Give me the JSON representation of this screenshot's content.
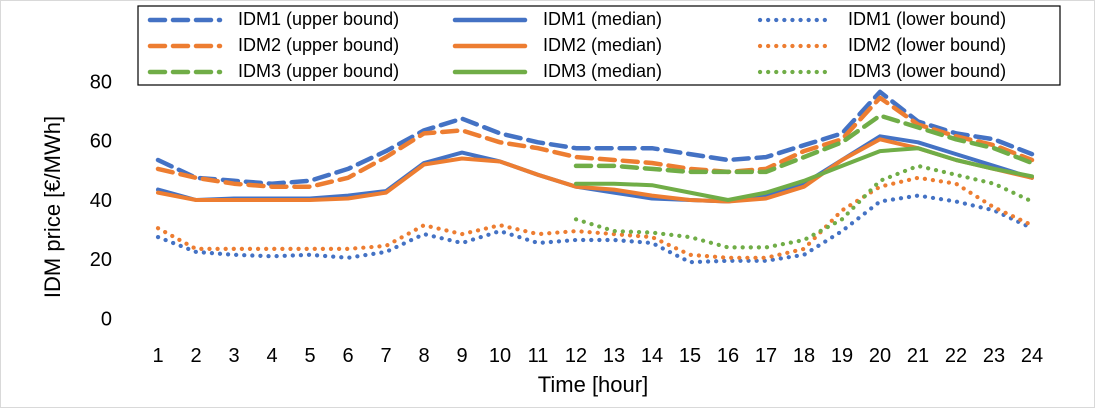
{
  "chart_data": {
    "type": "line",
    "title": "",
    "xlabel": "Time [hour]",
    "ylabel": "IDM price [€/MWh]",
    "ylim": [
      0,
      80
    ],
    "yticks": [
      0,
      20,
      40,
      60,
      80
    ],
    "grid": false,
    "legend_position": "top",
    "categories": [
      "1",
      "2",
      "3",
      "4",
      "5",
      "6",
      "7",
      "8",
      "9",
      "10",
      "11",
      "12",
      "13",
      "14",
      "15",
      "16",
      "17",
      "18",
      "19",
      "20",
      "21",
      "22",
      "23",
      "24"
    ],
    "colors": {
      "IDM1": "#4472C4",
      "IDM2": "#ED7D31",
      "IDM3": "#70AD47"
    },
    "series": [
      {
        "name": "IDM1 (upper bound)",
        "market": "IDM1",
        "style": "dashed",
        "values": [
          54,
          48,
          47,
          46,
          47,
          51,
          57,
          64,
          68,
          63,
          60,
          58,
          58,
          58,
          56,
          54,
          55,
          59,
          63,
          77,
          67,
          63,
          61,
          56
        ]
      },
      {
        "name": "IDM1 (median)",
        "market": "IDM1",
        "style": "solid",
        "values": [
          44,
          40.5,
          41,
          41,
          41,
          42,
          43.5,
          53,
          56.5,
          53.5,
          49,
          45,
          43,
          41,
          40.5,
          40,
          42,
          46,
          54,
          62,
          60,
          56,
          52,
          48
        ]
      },
      {
        "name": "IDM1 (lower bound)",
        "market": "IDM1",
        "style": "dotted",
        "values": [
          28,
          23,
          22,
          21.5,
          22,
          21,
          23,
          29,
          26,
          30,
          26,
          27,
          27,
          26,
          19.5,
          20,
          20,
          22,
          30,
          40,
          42,
          40,
          37,
          31
        ]
      },
      {
        "name": "IDM2 (upper bound)",
        "market": "IDM2",
        "style": "dashed",
        "values": [
          51,
          48,
          46,
          45,
          45,
          48,
          55,
          63,
          64,
          60,
          58,
          55,
          54,
          53,
          51,
          50,
          51,
          57,
          61,
          75,
          66,
          62,
          59,
          54
        ]
      },
      {
        "name": "IDM2 (median)",
        "market": "IDM2",
        "style": "solid",
        "values": [
          43,
          40.5,
          40.5,
          40.5,
          40.5,
          41,
          43,
          52.5,
          54.5,
          53.5,
          49,
          45,
          44,
          42,
          40.5,
          40,
          41,
          45,
          54,
          61,
          58,
          54,
          51,
          48
        ]
      },
      {
        "name": "IDM2 (lower bound)",
        "market": "IDM2",
        "style": "dotted",
        "values": [
          31,
          24,
          24,
          24,
          24,
          24,
          25,
          32,
          29,
          32,
          29,
          30,
          29,
          28,
          22,
          21,
          21,
          24,
          37,
          45,
          48,
          46,
          38,
          32
        ]
      },
      {
        "name": "IDM3 (upper bound)",
        "market": "IDM3",
        "style": "dashed",
        "values": [
          null,
          null,
          null,
          null,
          null,
          null,
          null,
          null,
          null,
          null,
          null,
          52,
          52,
          51,
          50,
          50,
          50,
          55,
          60,
          69,
          65,
          61,
          58,
          53
        ]
      },
      {
        "name": "IDM3 (median)",
        "market": "IDM3",
        "style": "solid",
        "values": [
          null,
          null,
          null,
          null,
          null,
          null,
          null,
          null,
          null,
          null,
          null,
          46,
          46,
          45.5,
          43,
          40.5,
          43,
          47,
          52,
          57,
          58,
          54,
          51,
          48.5
        ]
      },
      {
        "name": "IDM3 (lower bound)",
        "market": "IDM3",
        "style": "dotted",
        "values": [
          null,
          null,
          null,
          null,
          null,
          null,
          null,
          null,
          null,
          null,
          null,
          34,
          30,
          29.5,
          28,
          24.5,
          24.5,
          27,
          34,
          47,
          52,
          49,
          46,
          40
        ]
      }
    ]
  }
}
